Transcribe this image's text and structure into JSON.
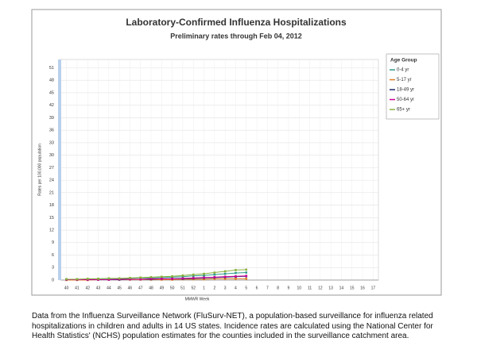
{
  "chart_data": {
    "type": "line",
    "title": "Laboratory-Confirmed Influenza Hospitalizations",
    "subtitle": "Preliminary rates through Feb 04, 2012",
    "x_label": "MMWR Week",
    "y_label": "Rates per 100,000 population",
    "legend_title": "Age Group",
    "legend_position": "right",
    "grid": true,
    "categories": [
      "40",
      "41",
      "42",
      "43",
      "44",
      "45",
      "46",
      "47",
      "48",
      "49",
      "50",
      "51",
      "52",
      "1",
      "2",
      "3",
      "4",
      "5",
      "6",
      "7",
      "8",
      "9",
      "10",
      "11",
      "12",
      "13",
      "14",
      "15",
      "16",
      "17"
    ],
    "ylim": [
      0,
      53
    ],
    "yticks": [
      0,
      3,
      6,
      9,
      12,
      15,
      18,
      21,
      24,
      27,
      30,
      33,
      36,
      39,
      42,
      45,
      48,
      51
    ],
    "series": [
      {
        "name": "0-4 yr",
        "color": "#2f9a8a",
        "values": [
          0.2,
          0.2,
          0.2,
          0.3,
          0.3,
          0.3,
          0.4,
          0.5,
          0.5,
          0.6,
          0.7,
          0.8,
          1.0,
          1.1,
          1.3,
          1.5,
          1.7,
          1.8,
          null,
          null,
          null,
          null,
          null,
          null,
          null,
          null,
          null,
          null,
          null,
          null
        ]
      },
      {
        "name": "5-17 yr",
        "color": "#e07b22",
        "values": [
          0.0,
          0.0,
          0.0,
          0.1,
          0.1,
          0.1,
          0.1,
          0.1,
          0.1,
          0.1,
          0.1,
          0.2,
          0.2,
          0.2,
          0.3,
          0.3,
          0.3,
          0.3,
          null,
          null,
          null,
          null,
          null,
          null,
          null,
          null,
          null,
          null,
          null,
          null
        ]
      },
      {
        "name": "18-49 yr",
        "color": "#1f2a6b",
        "values": [
          0.1,
          0.1,
          0.1,
          0.1,
          0.1,
          0.1,
          0.2,
          0.2,
          0.2,
          0.3,
          0.3,
          0.3,
          0.4,
          0.5,
          0.6,
          0.7,
          0.8,
          0.9,
          null,
          null,
          null,
          null,
          null,
          null,
          null,
          null,
          null,
          null,
          null,
          null
        ]
      },
      {
        "name": "50-64 yr",
        "color": "#cc0099",
        "values": [
          0.1,
          0.1,
          0.1,
          0.1,
          0.1,
          0.2,
          0.2,
          0.2,
          0.3,
          0.3,
          0.3,
          0.4,
          0.5,
          0.6,
          0.7,
          0.8,
          0.9,
          1.0,
          null,
          null,
          null,
          null,
          null,
          null,
          null,
          null,
          null,
          null,
          null,
          null
        ]
      },
      {
        "name": "65+ yr",
        "color": "#8ab03c",
        "values": [
          0.2,
          0.2,
          0.3,
          0.3,
          0.4,
          0.4,
          0.5,
          0.6,
          0.7,
          0.8,
          0.9,
          1.1,
          1.3,
          1.5,
          1.8,
          2.1,
          2.4,
          2.5,
          null,
          null,
          null,
          null,
          null,
          null,
          null,
          null,
          null,
          null,
          null,
          null
        ]
      }
    ]
  },
  "caption": "Data from the Influenza  Surveillance Network (FluSurv-NET),  a population-based surveillance for influenza related hospitalizations in children and adults in 14 US states.  Incidence rates are calculated using the National Center for Health Statistics' (NCHS) population estimates for the counties included in the surveillance catchment area."
}
